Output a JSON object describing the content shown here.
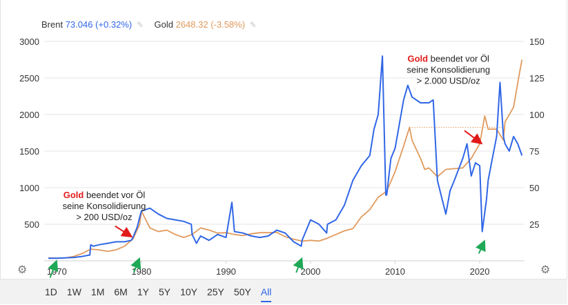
{
  "legend": [
    {
      "name": "Brent",
      "value": "73.046 (+0.32%)",
      "color": "#2f66e6",
      "icon": "pencil-icon"
    },
    {
      "name": "Gold",
      "value": "2648.32 (-3.58%)",
      "color": "#e0995c",
      "icon": "pencil-icon"
    }
  ],
  "colors": {
    "brent": "#2f66e6",
    "gold": "#e0995c",
    "annotation": "#e11a1a",
    "arrow_green": "#1fa855"
  },
  "ranges": [
    {
      "label": "1D",
      "active": false
    },
    {
      "label": "1W",
      "active": false
    },
    {
      "label": "1M",
      "active": false
    },
    {
      "label": "6M",
      "active": false
    },
    {
      "label": "1Y",
      "active": false
    },
    {
      "label": "5Y",
      "active": false
    },
    {
      "label": "10Y",
      "active": false
    },
    {
      "label": "25Y",
      "active": false
    },
    {
      "label": "50Y",
      "active": false
    },
    {
      "label": "All",
      "active": true
    }
  ],
  "icons": {
    "settings_left": "gear-icon",
    "settings_right": "gear-icon"
  },
  "chart_data": {
    "type": "line",
    "title": "",
    "xlabel": "",
    "y_left_label": "",
    "y_right_label": "",
    "xlim": [
      1968.5,
      2025.3
    ],
    "x_ticks": [
      1970,
      1980,
      1990,
      2000,
      2010,
      2020
    ],
    "y_left_lim": [
      0,
      3000
    ],
    "y_left_ticks": [
      500,
      1000,
      1500,
      2000,
      2500,
      3000
    ],
    "y_right_lim": [
      0,
      150
    ],
    "y_right_ticks": [
      25,
      50,
      75,
      100,
      125,
      150
    ],
    "grid": true,
    "legend_position": "top-left",
    "series": [
      {
        "name": "Brent",
        "axis": "right",
        "points": [
          [
            1969,
            1.8
          ],
          [
            1970,
            1.8
          ],
          [
            1972,
            2.3
          ],
          [
            1973,
            3
          ],
          [
            1973.9,
            4
          ],
          [
            1974,
            11
          ],
          [
            1974.3,
            10
          ],
          [
            1975,
            11
          ],
          [
            1976,
            12
          ],
          [
            1977,
            13
          ],
          [
            1978,
            13
          ],
          [
            1978.8,
            14
          ],
          [
            1979,
            16
          ],
          [
            1979.5,
            23
          ],
          [
            1979.8,
            30
          ],
          [
            1980,
            34
          ],
          [
            1981,
            36
          ],
          [
            1981.5,
            34
          ],
          [
            1982,
            32
          ],
          [
            1983,
            29
          ],
          [
            1984,
            28
          ],
          [
            1985,
            27
          ],
          [
            1985.9,
            25
          ],
          [
            1986,
            18
          ],
          [
            1986.5,
            12
          ],
          [
            1987,
            17
          ],
          [
            1988,
            14
          ],
          [
            1989,
            18
          ],
          [
            1990,
            16
          ],
          [
            1990.7,
            40
          ],
          [
            1991,
            20
          ],
          [
            1992,
            19
          ],
          [
            1993,
            17
          ],
          [
            1994,
            16
          ],
          [
            1995,
            17
          ],
          [
            1996,
            21
          ],
          [
            1997,
            19
          ],
          [
            1998,
            13
          ],
          [
            1998.9,
            10
          ],
          [
            1999,
            14
          ],
          [
            2000,
            28
          ],
          [
            2001,
            25
          ],
          [
            2001.9,
            19
          ],
          [
            2002,
            25
          ],
          [
            2003,
            28
          ],
          [
            2004,
            38
          ],
          [
            2005,
            55
          ],
          [
            2006,
            65
          ],
          [
            2007,
            72
          ],
          [
            2007.5,
            90
          ],
          [
            2008,
            100
          ],
          [
            2008.5,
            140
          ],
          [
            2008.9,
            45
          ],
          [
            2009,
            45
          ],
          [
            2009.5,
            70
          ],
          [
            2010,
            77
          ],
          [
            2011,
            110
          ],
          [
            2011.5,
            120
          ],
          [
            2012,
            112
          ],
          [
            2013,
            108
          ],
          [
            2014,
            108
          ],
          [
            2014.5,
            110
          ],
          [
            2015,
            55
          ],
          [
            2016,
            32
          ],
          [
            2016.5,
            48
          ],
          [
            2017,
            55
          ],
          [
            2018,
            70
          ],
          [
            2018.5,
            80
          ],
          [
            2019,
            58
          ],
          [
            2019.5,
            67
          ],
          [
            2020,
            65
          ],
          [
            2020.3,
            20
          ],
          [
            2020.8,
            42
          ],
          [
            2021,
            55
          ],
          [
            2021.5,
            70
          ],
          [
            2022,
            85
          ],
          [
            2022.4,
            122
          ],
          [
            2022.8,
            85
          ],
          [
            2023,
            80
          ],
          [
            2023.5,
            75
          ],
          [
            2024,
            85
          ],
          [
            2024.5,
            80
          ],
          [
            2025,
            72
          ]
        ]
      },
      {
        "name": "Gold",
        "axis": "left",
        "points": [
          [
            1969,
            41
          ],
          [
            1970,
            36
          ],
          [
            1971,
            40
          ],
          [
            1972,
            60
          ],
          [
            1973,
            100
          ],
          [
            1974,
            160
          ],
          [
            1975,
            150
          ],
          [
            1976,
            130
          ],
          [
            1977,
            150
          ],
          [
            1978,
            200
          ],
          [
            1979,
            300
          ],
          [
            1979.8,
            500
          ],
          [
            1980,
            680
          ],
          [
            1981,
            450
          ],
          [
            1982,
            400
          ],
          [
            1983,
            420
          ],
          [
            1984,
            360
          ],
          [
            1985,
            320
          ],
          [
            1986,
            360
          ],
          [
            1987,
            450
          ],
          [
            1988,
            420
          ],
          [
            1989,
            380
          ],
          [
            1990,
            385
          ],
          [
            1991,
            360
          ],
          [
            1992,
            345
          ],
          [
            1993,
            370
          ],
          [
            1994,
            385
          ],
          [
            1995,
            385
          ],
          [
            1996,
            390
          ],
          [
            1997,
            330
          ],
          [
            1998,
            295
          ],
          [
            1999,
            270
          ],
          [
            2000,
            280
          ],
          [
            2001,
            270
          ],
          [
            2002,
            310
          ],
          [
            2003,
            360
          ],
          [
            2004,
            410
          ],
          [
            2005,
            440
          ],
          [
            2006,
            600
          ],
          [
            2007,
            700
          ],
          [
            2008,
            870
          ],
          [
            2009,
            950
          ],
          [
            2010,
            1220
          ],
          [
            2011,
            1570
          ],
          [
            2011.7,
            1825
          ],
          [
            2012,
            1650
          ],
          [
            2013,
            1400
          ],
          [
            2013.5,
            1250
          ],
          [
            2014,
            1270
          ],
          [
            2015,
            1150
          ],
          [
            2016,
            1250
          ],
          [
            2017,
            1260
          ],
          [
            2018,
            1270
          ],
          [
            2019,
            1400
          ],
          [
            2020,
            1600
          ],
          [
            2020.6,
            1980
          ],
          [
            2021,
            1800
          ],
          [
            2022,
            1800
          ],
          [
            2022.8,
            1650
          ],
          [
            2023,
            1900
          ],
          [
            2024,
            2100
          ],
          [
            2024.6,
            2500
          ],
          [
            2025,
            2750
          ]
        ]
      }
    ],
    "reference_line": {
      "axis": "left",
      "y": 1825,
      "x_from": 2011.7,
      "x_to": 2022.6,
      "color": "#e0995c",
      "style": "dotted"
    },
    "annotations": [
      {
        "lines": [
          "Gold beendet vor Öl",
          "seine Konsolidierung",
          "> 200 USD/oz"
        ],
        "bold_word": "Gold",
        "anchor_x": 1975.6,
        "anchor_y": 860,
        "axis": "left"
      },
      {
        "lines": [
          "Gold beendet vor Öl",
          "seine Konsolidierung",
          "> 2.000 USD/oz"
        ],
        "bold_word": "Gold",
        "anchor_x": 2016.3,
        "anchor_y": 2720,
        "axis": "left"
      }
    ],
    "red_arrows": [
      {
        "from": [
          1976.9,
          475
        ],
        "to": [
          1978.7,
          340
        ],
        "axis": "left"
      },
      {
        "from": [
          2018.2,
          1780
        ],
        "to": [
          2020.1,
          1615
        ],
        "axis": "left"
      }
    ],
    "green_arrows": [
      {
        "from": [
          1969.2,
          -230
        ],
        "to": [
          1969.9,
          -20
        ],
        "axis": "left"
      },
      {
        "from": [
          1979.1,
          -160
        ],
        "to": [
          1979.7,
          15
        ],
        "axis": "left"
      },
      {
        "from": [
          1998.3,
          -160
        ],
        "to": [
          1998.9,
          15
        ],
        "axis": "left"
      },
      {
        "from": [
          2019.9,
          100
        ],
        "to": [
          2020.5,
          255
        ],
        "axis": "left"
      }
    ]
  }
}
